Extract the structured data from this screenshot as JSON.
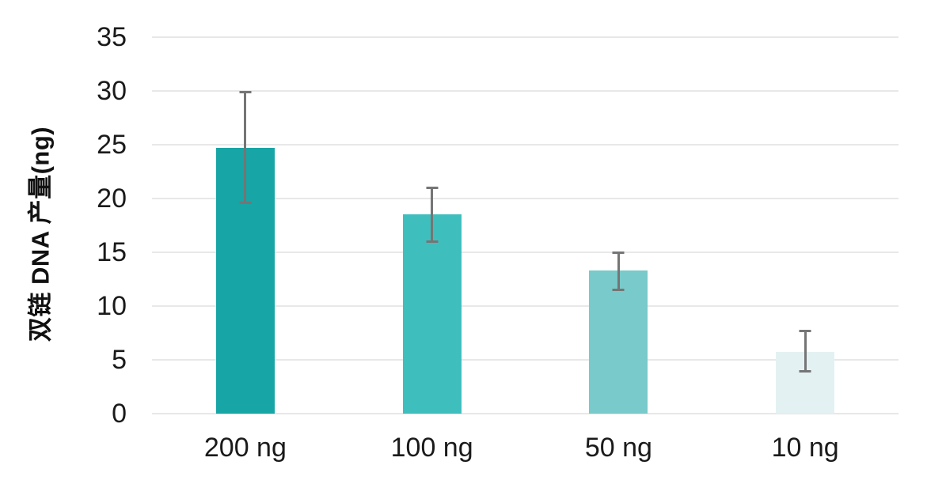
{
  "chart_data": {
    "type": "bar",
    "title": "",
    "categories": [
      "200 ng",
      "100 ng",
      "50 ng",
      "10 ng"
    ],
    "values": [
      24.7,
      18.5,
      13.3,
      5.7
    ],
    "error_low": [
      19.5,
      15.9,
      11.4,
      3.8
    ],
    "error_high": [
      30.0,
      21.1,
      15.1,
      7.8
    ],
    "bar_colors": [
      "#17A5A5",
      "#3EBFBE",
      "#79CACA",
      "#E3F1F2"
    ],
    "xlabel": "",
    "ylabel": "双链 DNA 产量(ng)",
    "ylim": [
      0,
      35
    ],
    "yticks": [
      0,
      5,
      10,
      15,
      20,
      25,
      30,
      35
    ],
    "grid": "horizontal",
    "legend": "none",
    "gridline_color": "#E8E8E8",
    "error_bar_color": "#757575",
    "text_color": "#1A1A1A",
    "background": "#FFFFFF"
  }
}
